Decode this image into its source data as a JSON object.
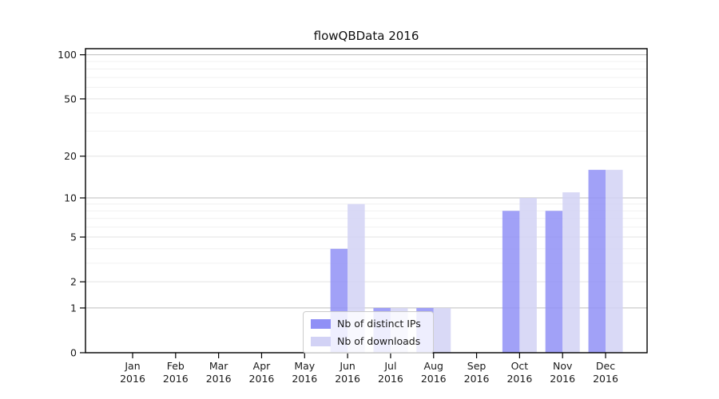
{
  "figure": {
    "title": "flowQBData 2016",
    "background": "#ffffff"
  },
  "chart_data": {
    "type": "bar",
    "title": "flowQBData 2016",
    "categories": [
      "Jan",
      "Feb",
      "Mar",
      "Apr",
      "May",
      "Jun",
      "Jul",
      "Aug",
      "Sep",
      "Oct",
      "Nov",
      "Dec"
    ],
    "year_label": "2016",
    "series": [
      {
        "name": "Nb of distinct IPs",
        "color": "#9090f6",
        "values": [
          0,
          0,
          0,
          0,
          0,
          4,
          1,
          1,
          0,
          8,
          8,
          16
        ]
      },
      {
        "name": "Nb of downloads",
        "color": "#d2d2f5",
        "values": [
          0,
          0,
          0,
          0,
          0,
          9,
          1,
          1,
          0,
          10,
          11,
          16
        ]
      }
    ],
    "y_axis": {
      "scale": "log1p",
      "tick_values": [
        0,
        1,
        2,
        5,
        10,
        20,
        50,
        100
      ],
      "tick_labels": [
        "0",
        "1",
        "2",
        "5",
        "10",
        "20",
        "50",
        "100"
      ],
      "minor_gridline_values": [
        3,
        4,
        6,
        7,
        8,
        9,
        30,
        40,
        60,
        70,
        80,
        90
      ],
      "range": [
        0,
        110
      ]
    },
    "grid": true,
    "legend_position": "bottom-center",
    "colors": {
      "major_power_gridline": "#bdbdbd",
      "labeled_gridline": "#e3e3e3",
      "minor_gridline": "#f1f1f1",
      "spine": "#000000",
      "tick_text": "#1a1a1a"
    }
  }
}
